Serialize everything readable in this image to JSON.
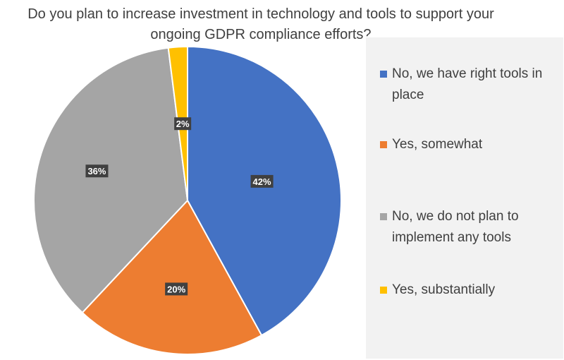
{
  "chart_data": {
    "type": "pie",
    "title": "Do you plan to increase investment in technology and tools to support your ongoing GDPR compliance efforts?",
    "categories": [
      "No, we have right tools in place",
      "Yes, somewhat",
      "No, we do not plan to implement any tools",
      "Yes, substantially"
    ],
    "values": [
      42,
      20,
      36,
      2
    ],
    "value_labels": [
      "42%",
      "20%",
      "36%",
      "2%"
    ],
    "colors": [
      "#4472c4",
      "#ed7d31",
      "#a5a5a5",
      "#ffc000"
    ],
    "legend_placement": "right"
  }
}
